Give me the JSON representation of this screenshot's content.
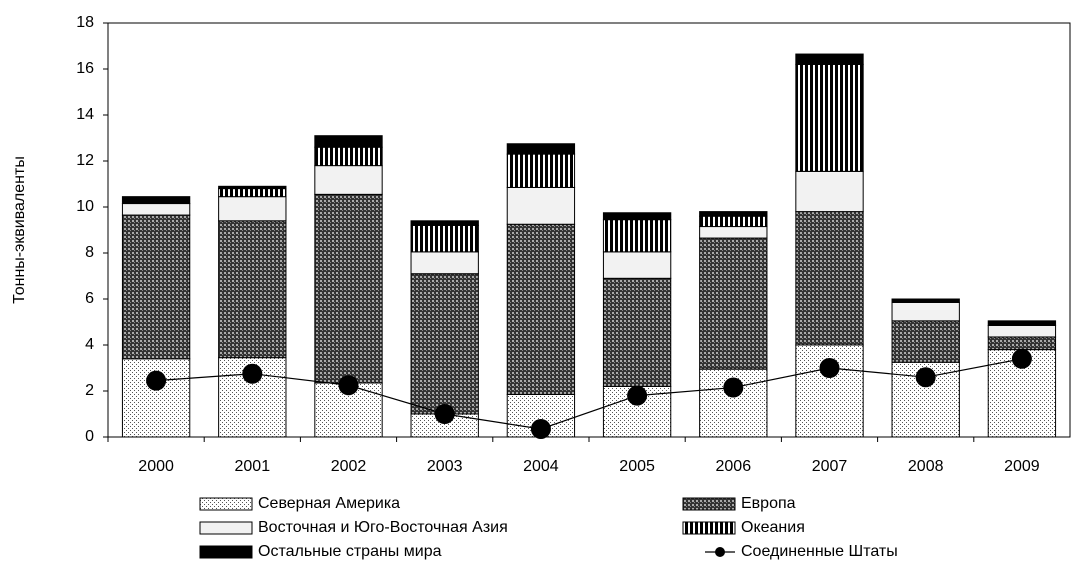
{
  "chart_data": {
    "type": "bar",
    "stacked": true,
    "ylabel": "Тонны-эквиваленты",
    "categories": [
      "2000",
      "2001",
      "2002",
      "2003",
      "2004",
      "2005",
      "2006",
      "2007",
      "2008",
      "2009"
    ],
    "series": [
      {
        "name": "Северная Америка",
        "color": "#ffffff",
        "pattern": "dots",
        "values": [
          3.4,
          3.45,
          2.35,
          1.0,
          1.85,
          2.2,
          2.95,
          4.0,
          3.25,
          3.8
        ]
      },
      {
        "name": "Европа",
        "color": "#444444",
        "pattern": "crosshatch",
        "values": [
          6.25,
          5.95,
          8.2,
          6.1,
          7.4,
          4.7,
          5.7,
          5.8,
          1.8,
          0.55
        ]
      },
      {
        "name": "Восточная и Юго-Восточная Азия",
        "color": "#f2f2f2",
        "pattern": "none",
        "values": [
          0.5,
          1.05,
          1.25,
          0.95,
          1.6,
          1.15,
          0.5,
          1.75,
          0.8,
          0.5
        ]
      },
      {
        "name": "Океания",
        "color": "#000000",
        "pattern": "vertical",
        "values": [
          0,
          0.35,
          0.8,
          1.15,
          1.45,
          1.4,
          0.45,
          4.65,
          0,
          0
        ]
      },
      {
        "name": "Остальные страны мира",
        "color": "#000000",
        "pattern": "solid",
        "values": [
          0.3,
          0.1,
          0.5,
          0.2,
          0.45,
          0.3,
          0.2,
          0.45,
          0.15,
          0.2
        ]
      },
      {
        "name": "Соединенные Штаты",
        "type": "line",
        "color": "#000000",
        "values": [
          2.45,
          2.75,
          2.25,
          1.0,
          0.35,
          1.8,
          2.15,
          3.0,
          2.6,
          3.4
        ]
      }
    ],
    "ylim": [
      0,
      18
    ],
    "yticks": [
      0,
      2,
      4,
      6,
      8,
      10,
      12,
      14,
      16,
      18
    ],
    "grid": false
  }
}
